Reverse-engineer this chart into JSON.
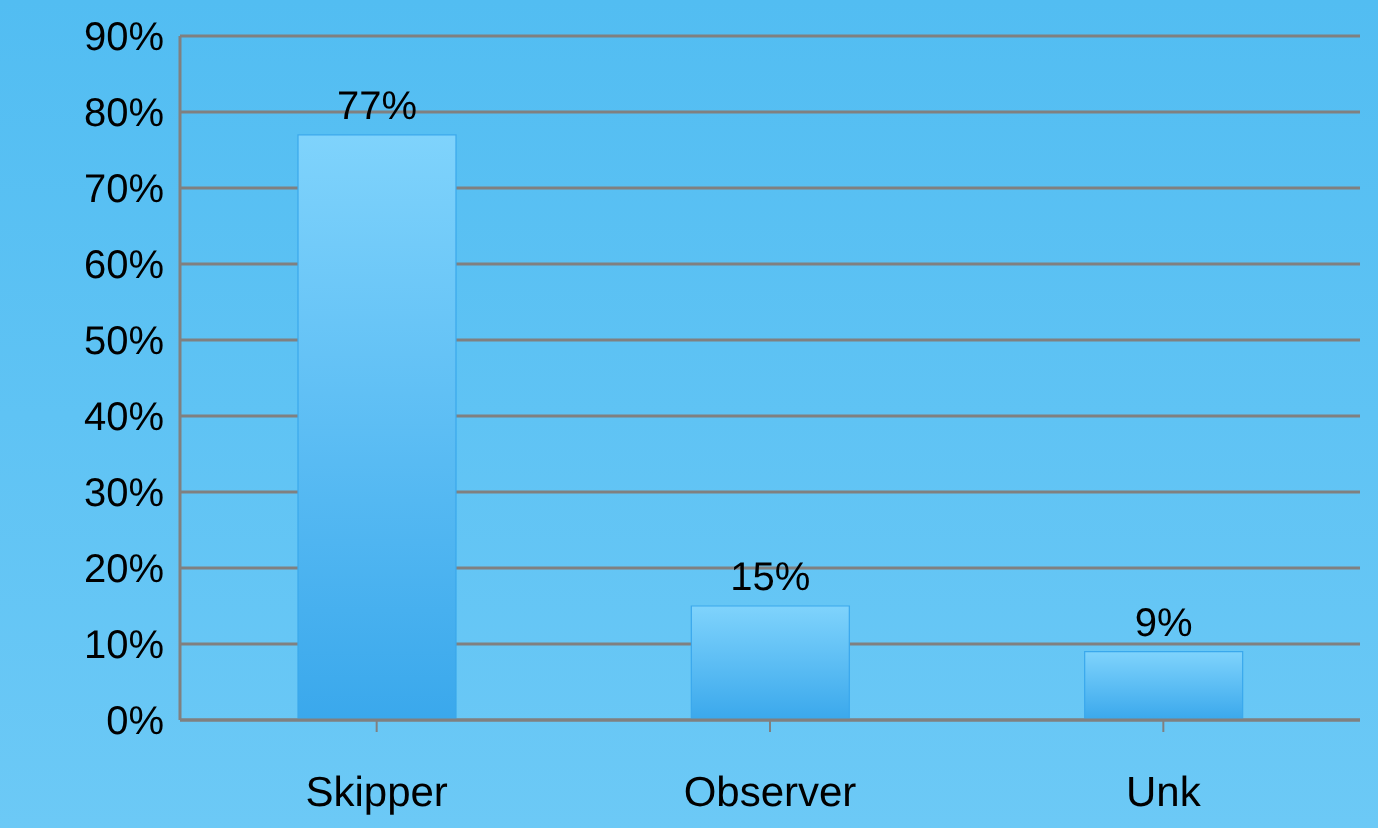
{
  "chart_data": {
    "type": "bar",
    "categories": [
      "Skipper",
      "Observer",
      "Unk"
    ],
    "values": [
      77,
      15,
      9
    ],
    "value_labels": [
      "77%",
      "15%",
      "9%"
    ],
    "color": "#3aa8ec",
    "ylim": [
      0,
      90
    ],
    "yticks": [
      {
        "value": 0,
        "label": "0%"
      },
      {
        "value": 10,
        "label": "10%"
      },
      {
        "value": 20,
        "label": "20%"
      },
      {
        "value": 30,
        "label": "30%"
      },
      {
        "value": 40,
        "label": "40%"
      },
      {
        "value": 50,
        "label": "50%"
      },
      {
        "value": 60,
        "label": "60%"
      },
      {
        "value": 70,
        "label": "70%"
      },
      {
        "value": 80,
        "label": "80%"
      },
      {
        "value": 90,
        "label": "90%"
      }
    ],
    "grid": "y",
    "legend": false
  }
}
